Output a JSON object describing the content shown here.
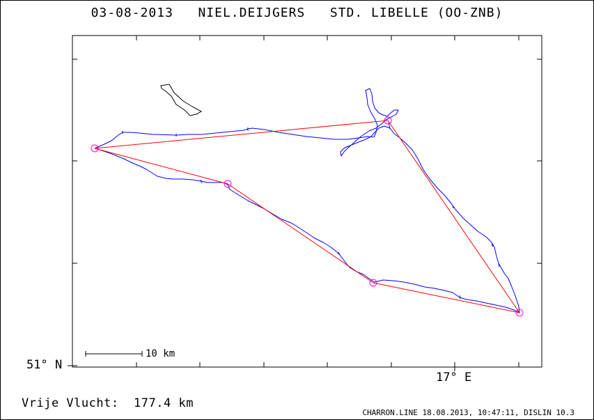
{
  "header": {
    "title": "03-08-2013   NIEL.DEIJGERS   STD. LIBELLE (OO-ZNB)"
  },
  "axes": {
    "lat_label": "51° N",
    "lon_label": "17° E"
  },
  "scale_bar": {
    "label": "10 km"
  },
  "footer": {
    "distance_label": "Vrije Vlucht:",
    "distance_value": "177.4 km",
    "credit": "CHARRON.LINE 18.08.2013, 10:47:11, DISLIN 10.3"
  },
  "colors": {
    "track": "#0000ff",
    "task_line": "#ff0000",
    "turnpoint": "#ff00ff",
    "frame": "#000000"
  },
  "map": {
    "turnpoints": 5
  }
}
